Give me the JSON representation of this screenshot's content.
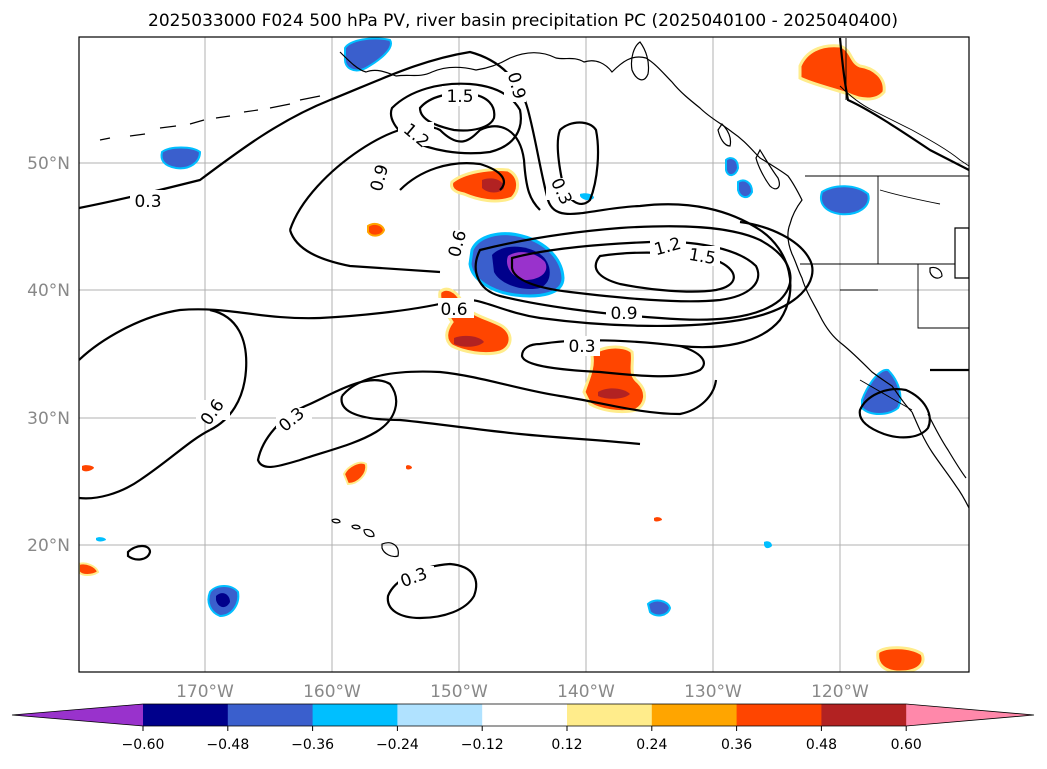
{
  "map": {
    "title": "2025033000 F024 500 hPa PV, river basin precipitation PC (2025040100 - 2025040400)",
    "lat_labels": [
      "50°N",
      "40°N",
      "30°N",
      "20°N"
    ],
    "lon_labels": [
      "170°W",
      "160°W",
      "150°W",
      "140°W",
      "130°W",
      "120°W"
    ],
    "contour_labels": [
      "0.3",
      "0.6",
      "0.9",
      "1.2",
      "1.5"
    ],
    "contour_color": "#000000",
    "gridline_color": "#b0b0b0"
  },
  "colorbar": {
    "ticks": [
      "−0.60",
      "−0.48",
      "−0.36",
      "−0.24",
      "−0.12",
      "0.12",
      "0.24",
      "0.36",
      "0.48",
      "0.60"
    ],
    "colors": [
      "#9932cc",
      "#00008b",
      "#3a5fcd",
      "#00bfff",
      "#b0e2ff",
      "#ffffff",
      "#ffec8b",
      "#ffa500",
      "#ff4500",
      "#b22222",
      "#ff88aa"
    ]
  }
}
